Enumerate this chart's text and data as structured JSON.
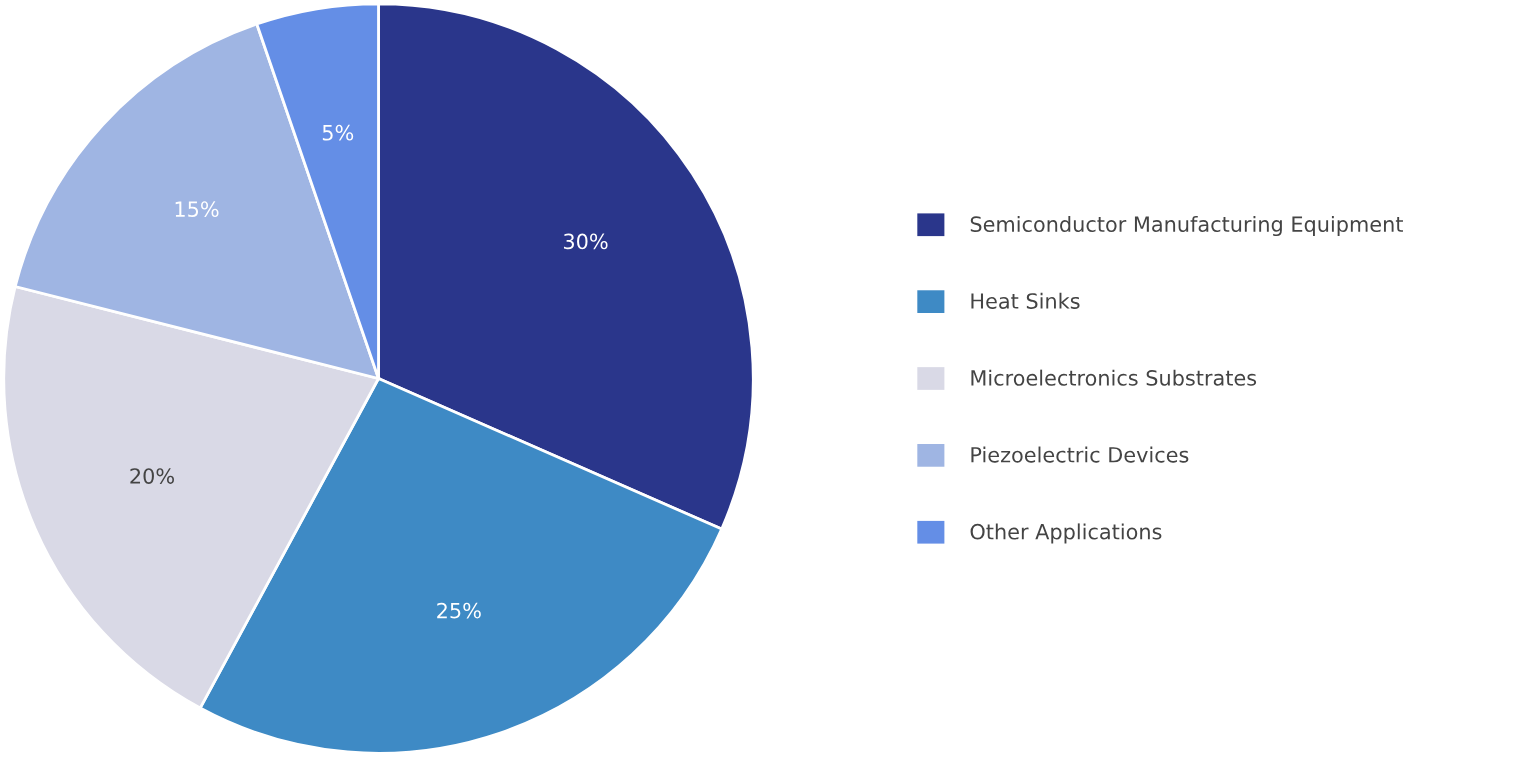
{
  "chart_data": {
    "type": "pie",
    "categories": [
      "Semiconductor Manufacturing Equipment",
      "Heat Sinks",
      "Microelectronics Substrates",
      "Piezoelectric Devices",
      "Other Applications"
    ],
    "values": [
      30,
      25,
      20,
      15,
      5
    ],
    "colors": [
      "#2a368b",
      "#3e8ac5",
      "#d9d9e6",
      "#9fb5e3",
      "#648ee6"
    ],
    "value_labels": [
      "30%",
      "25%",
      "20%",
      "15%",
      "5%"
    ],
    "legend": "right"
  }
}
